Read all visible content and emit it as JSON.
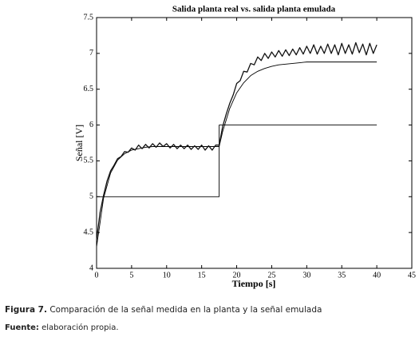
{
  "chart_data": {
    "type": "line",
    "title": "Salida planta real vs. salida planta emulada",
    "xlabel": "Tiempo [s]",
    "ylabel": "Señal [V]",
    "xlim": [
      0,
      45
    ],
    "xticks": [
      0,
      5,
      10,
      15,
      20,
      25,
      30,
      35,
      40,
      45
    ],
    "ylim": [
      4,
      7.5
    ],
    "yticks": [
      4,
      4.5,
      5,
      5.5,
      6,
      6.5,
      7,
      7.5
    ],
    "grid": false,
    "series": [
      {
        "color": "#000000",
        "x": [
          0,
          0,
          17.5,
          17.5,
          40
        ],
        "values": [
          4,
          5,
          5,
          6,
          6
        ]
      },
      {
        "color": "#000000",
        "x": [
          0,
          1,
          2,
          3,
          4,
          5,
          6,
          7,
          8,
          9,
          10,
          11,
          12,
          13,
          14,
          15,
          16,
          17,
          17.5,
          18,
          19,
          20,
          21,
          22,
          23,
          24,
          25,
          26,
          27,
          28,
          29,
          30,
          31,
          32,
          33,
          34,
          35,
          36,
          37,
          38,
          39,
          40
        ],
        "values": [
          4.3,
          4.98,
          5.33,
          5.51,
          5.6,
          5.65,
          5.67,
          5.69,
          5.7,
          5.7,
          5.7,
          5.7,
          5.7,
          5.7,
          5.7,
          5.7,
          5.7,
          5.7,
          5.7,
          5.91,
          6.23,
          6.45,
          6.59,
          6.69,
          6.75,
          6.79,
          6.82,
          6.84,
          6.85,
          6.86,
          6.87,
          6.88,
          6.88,
          6.88,
          6.88,
          6.88,
          6.88,
          6.88,
          6.88,
          6.88,
          6.88,
          6.88
        ]
      },
      {
        "color": "#111111",
        "x": [
          0,
          0.5,
          1,
          1.5,
          2,
          2.5,
          3,
          3.5,
          4,
          4.5,
          5,
          5.5,
          6,
          6.5,
          7,
          7.5,
          8,
          8.5,
          9,
          9.5,
          10,
          10.5,
          11,
          11.5,
          12,
          12.5,
          13,
          13.5,
          14,
          14.5,
          15,
          15.5,
          16,
          16.5,
          17,
          17.5,
          18,
          18.5,
          19,
          19.5,
          20,
          20.5,
          21,
          21.5,
          22,
          22.5,
          23,
          23.5,
          24,
          24.5,
          25,
          25.5,
          26,
          26.5,
          27,
          27.5,
          28,
          28.5,
          29,
          29.5,
          30,
          30.5,
          31,
          31.5,
          32,
          32.5,
          33,
          33.5,
          34,
          34.5,
          35,
          35.5,
          36,
          36.5,
          37,
          37.5,
          38,
          38.5,
          39,
          39.5,
          40
        ],
        "values": [
          4.4,
          4.78,
          5.02,
          5.22,
          5.36,
          5.44,
          5.53,
          5.56,
          5.63,
          5.62,
          5.68,
          5.65,
          5.72,
          5.67,
          5.73,
          5.68,
          5.74,
          5.69,
          5.75,
          5.7,
          5.74,
          5.68,
          5.73,
          5.67,
          5.72,
          5.67,
          5.72,
          5.66,
          5.71,
          5.66,
          5.72,
          5.65,
          5.71,
          5.65,
          5.72,
          5.72,
          5.98,
          6.15,
          6.3,
          6.42,
          6.58,
          6.62,
          6.75,
          6.74,
          6.86,
          6.84,
          6.95,
          6.9,
          7.0,
          6.93,
          7.02,
          6.95,
          7.04,
          6.96,
          7.05,
          6.97,
          7.06,
          6.98,
          7.08,
          6.99,
          7.1,
          7.0,
          7.12,
          6.99,
          7.1,
          7.0,
          7.13,
          7.0,
          7.12,
          6.98,
          7.14,
          7.0,
          7.12,
          6.99,
          7.15,
          7.01,
          7.13,
          6.98,
          7.14,
          7.0,
          7.12
        ]
      }
    ]
  },
  "figure_caption": {
    "label": "Figura 7.",
    "text": "Comparación de la señal medida en la planta y la señal emulada"
  },
  "figure_source": {
    "label": "Fuente:",
    "text": "elaboración propia."
  }
}
